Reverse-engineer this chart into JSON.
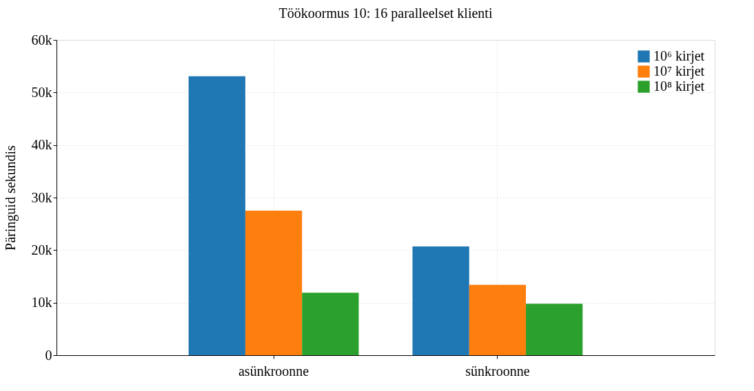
{
  "chart_data": {
    "type": "bar",
    "title": "Töökoormus 10: 16 paralleelset klienti",
    "ylabel": "Päringuid sekundis",
    "categories": [
      "asünkroonne",
      "sünkroonne"
    ],
    "series": [
      {
        "name": "10⁶ kirjet",
        "color": "#1f77b4",
        "values": [
          53100,
          20700
        ]
      },
      {
        "name": "10⁷ kirjet",
        "color": "#ff7f0e",
        "values": [
          27500,
          13400
        ]
      },
      {
        "name": "10⁸ kirjet",
        "color": "#2ca02c",
        "values": [
          11900,
          9800
        ]
      }
    ],
    "ylim": [
      0,
      60000
    ],
    "yticks": [
      {
        "value": 0,
        "label": "0"
      },
      {
        "value": 10000,
        "label": "10k"
      },
      {
        "value": 20000,
        "label": "20k"
      },
      {
        "value": 30000,
        "label": "30k"
      },
      {
        "value": 40000,
        "label": "40k"
      },
      {
        "value": 50000,
        "label": "50k"
      },
      {
        "value": 60000,
        "label": "60k"
      }
    ],
    "grid": true,
    "legend": "top right"
  }
}
